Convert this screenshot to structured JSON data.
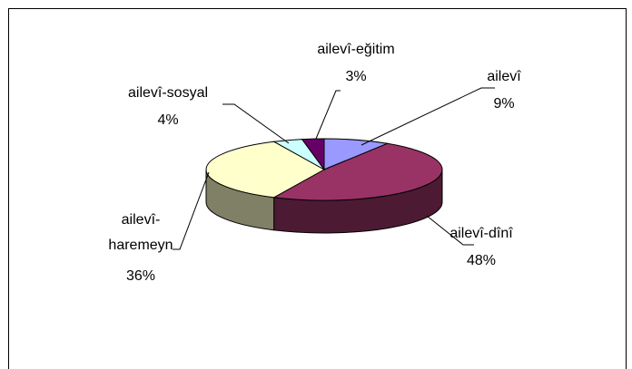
{
  "chart_data": {
    "type": "pie3d",
    "categories": [
      "ailevî",
      "ailevî-dînî",
      "ailevî-haremeyn",
      "ailevî-sosyal",
      "ailevî-eğitim"
    ],
    "values": [
      9,
      48,
      36,
      4,
      3
    ],
    "value_labels": [
      "9%",
      "48%",
      "36%",
      "4%",
      "3%"
    ],
    "colors": [
      "#9999ff",
      "#993366",
      "#ffffcc",
      "#ccffff",
      "#660066"
    ]
  }
}
